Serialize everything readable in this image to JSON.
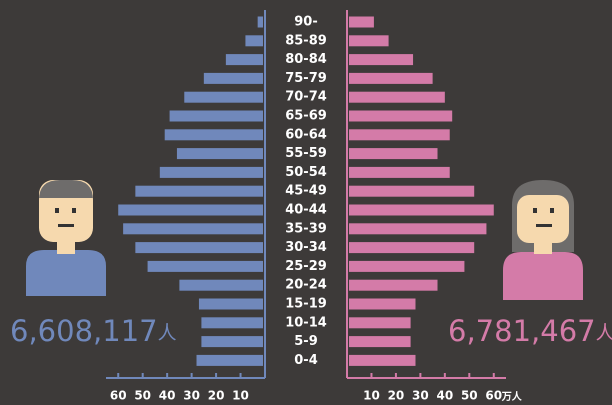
{
  "chart_data": {
    "type": "pyramid",
    "categories": [
      "90-",
      "85-89",
      "80-84",
      "75-79",
      "70-74",
      "65-69",
      "60-64",
      "55-59",
      "50-54",
      "45-49",
      "40-44",
      "35-39",
      "30-34",
      "25-29",
      "20-24",
      "15-19",
      "10-14",
      "5-9",
      "0-4"
    ],
    "series": [
      {
        "color": "#7088bb",
        "values": [
          3,
          8,
          16,
          25,
          33,
          39,
          41,
          36,
          43,
          53,
          60,
          58,
          53,
          48,
          35,
          27,
          26,
          26,
          28
        ],
        "total": "6,608,117"
      },
      {
        "color": "#d47ba8",
        "values": [
          11,
          17,
          27,
          35,
          40,
          43,
          42,
          37,
          42,
          52,
          60,
          57,
          52,
          48,
          37,
          28,
          26,
          26,
          28
        ],
        "total": "6,781,467"
      }
    ],
    "total_unit": "人",
    "x_unit": "万人",
    "xlim": [
      0,
      65
    ],
    "xticks": [
      10,
      20,
      30,
      40,
      50,
      60
    ]
  }
}
